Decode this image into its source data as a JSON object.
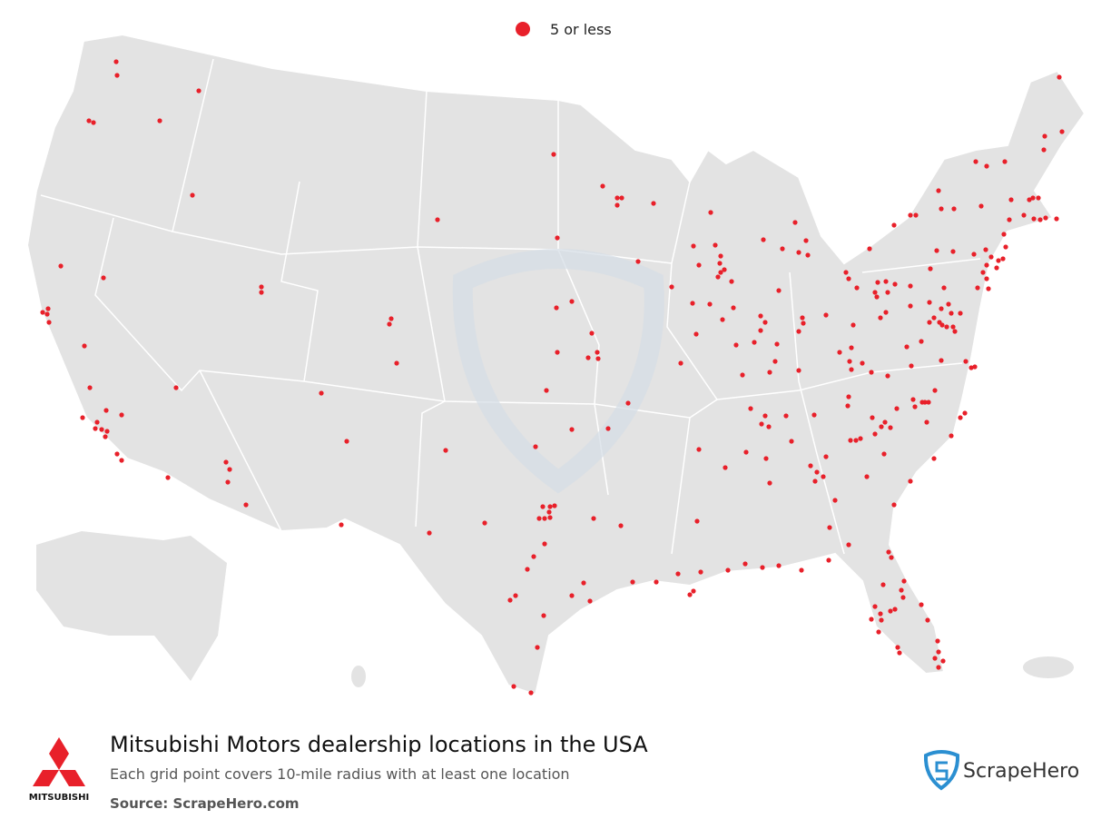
{
  "legend": {
    "label": "5 or less",
    "color": "#e8202a"
  },
  "title": "Mitsubishi Motors dealership locations in the USA",
  "subtitle": "Each grid point covers 10-mile radius with at least one location",
  "source": "Source: ScrapeHero.com",
  "brand": "MITSUBISHI",
  "publisher": "ScrapeHero"
}
